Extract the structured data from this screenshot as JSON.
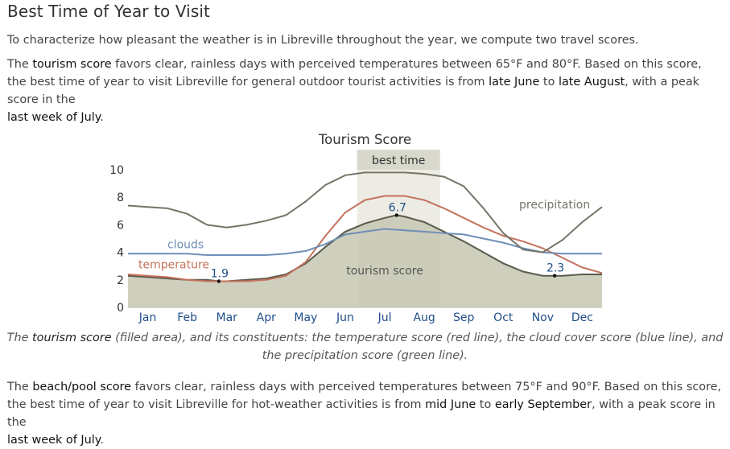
{
  "heading": "Best Time of Year to Visit",
  "intro": "To characterize how pleasant the weather is in Libreville throughout the year, we compute two travel scores.",
  "tourism_paragraph": {
    "p1": "The ",
    "score_name": "tourism score",
    "p2": " favors clear, rainless days with perceived temperatures between 65°F and 80°F. Based on this score, the best time of year to visit Libreville for general outdoor tourist activities is from ",
    "start": "late June",
    "p3": " to ",
    "end": "late August",
    "p4": ", with a peak score in the ",
    "peak": "last week of July",
    "p5": "."
  },
  "caption": {
    "p1": "The ",
    "score_name": "tourism score",
    "p2": " (filled area), and its constituents: the temperature score (red line), the cloud cover score (blue line), and the precipitation score (green line)."
  },
  "beach_paragraph": {
    "p1": "The ",
    "score_name": "beach/pool score",
    "p2": " favors clear, rainless days with perceived temperatures between 75°F and 90°F. Based on this score, the best time of year to visit Libreville for hot-weather activities is from ",
    "start": "mid June",
    "p3": " to ",
    "end": "early September",
    "p4": ", with a peak score in the ",
    "peak": "last week of July",
    "p5": "."
  },
  "chart_data": {
    "type": "area",
    "title": "Tourism Score",
    "categories": [
      "Jan",
      "Feb",
      "Mar",
      "Apr",
      "May",
      "Jun",
      "Jul",
      "Aug",
      "Sep",
      "Oct",
      "Nov",
      "Dec"
    ],
    "ylim": [
      0,
      10
    ],
    "yticks": [
      "0",
      "2",
      "4",
      "6",
      "8",
      "10"
    ],
    "x_domain": [
      0,
      12
    ],
    "best_time": {
      "label": "best time",
      "start": 5.8,
      "end": 7.9
    },
    "colors": {
      "tourism_fill": "#c7c7b3",
      "tourism_line": "#5a5a4d",
      "temperature": "#c4735c",
      "clouds": "#6f8fb8",
      "precipitation": "#757568",
      "best_band": "#d8d8cc",
      "month_label": "#1f4e8a"
    },
    "series": [
      {
        "name": "tourism score",
        "role": "area",
        "x": [
          0,
          0.5,
          1,
          1.5,
          2,
          2.3,
          2.5,
          3,
          3.5,
          4,
          4.5,
          5,
          5.5,
          6,
          6.5,
          6.8,
          7,
          7.5,
          8,
          8.5,
          9,
          9.5,
          10,
          10.5,
          10.8,
          11,
          11.5,
          12
        ],
        "values": [
          2.3,
          2.2,
          2.1,
          2.0,
          2.0,
          1.9,
          1.9,
          2.0,
          2.1,
          2.4,
          3.2,
          4.4,
          5.5,
          6.1,
          6.5,
          6.7,
          6.6,
          6.2,
          5.5,
          4.8,
          4.0,
          3.2,
          2.6,
          2.3,
          2.3,
          2.3,
          2.4,
          2.4
        ],
        "annotations": [
          {
            "x": 2.3,
            "value": 1.9,
            "label": "1.9"
          },
          {
            "x": 6.8,
            "value": 6.7,
            "label": "6.7"
          },
          {
            "x": 10.8,
            "value": 2.3,
            "label": "2.3"
          }
        ]
      },
      {
        "name": "temperature",
        "x": [
          0,
          0.5,
          1,
          1.5,
          2,
          2.5,
          3,
          3.5,
          4,
          4.5,
          5,
          5.5,
          6,
          6.5,
          7,
          7.5,
          8,
          8.5,
          9,
          9.5,
          10,
          10.5,
          11,
          11.5,
          12
        ],
        "values": [
          2.4,
          2.3,
          2.2,
          2.0,
          1.9,
          1.9,
          1.9,
          2.0,
          2.3,
          3.3,
          5.2,
          6.9,
          7.8,
          8.1,
          8.1,
          7.8,
          7.2,
          6.5,
          5.8,
          5.2,
          4.8,
          4.3,
          3.6,
          2.9,
          2.5
        ],
        "label_pos": "left"
      },
      {
        "name": "clouds",
        "x": [
          0,
          0.5,
          1,
          1.5,
          2,
          2.5,
          3,
          3.5,
          4,
          4.5,
          5,
          5.5,
          6,
          6.5,
          7,
          7.5,
          8,
          8.5,
          9,
          9.5,
          10,
          10.5,
          11,
          11.5,
          12
        ],
        "values": [
          3.9,
          3.9,
          3.9,
          3.9,
          3.8,
          3.8,
          3.8,
          3.8,
          3.9,
          4.1,
          4.6,
          5.3,
          5.5,
          5.7,
          5.6,
          5.5,
          5.4,
          5.3,
          5.0,
          4.7,
          4.3,
          4.0,
          3.9,
          3.9,
          3.9
        ]
      },
      {
        "name": "precipitation",
        "x": [
          0,
          0.5,
          1,
          1.5,
          2,
          2.5,
          3,
          3.5,
          4,
          4.5,
          5,
          5.5,
          6,
          6.5,
          7,
          7.5,
          8,
          8.5,
          9,
          9.5,
          10,
          10.5,
          11,
          11.5,
          12
        ],
        "values": [
          7.4,
          7.3,
          7.2,
          6.8,
          6.0,
          5.8,
          6.0,
          6.3,
          6.7,
          7.7,
          8.9,
          9.6,
          9.8,
          9.8,
          9.8,
          9.7,
          9.5,
          8.8,
          7.2,
          5.4,
          4.2,
          4.0,
          4.9,
          6.2,
          7.3
        ]
      }
    ]
  }
}
